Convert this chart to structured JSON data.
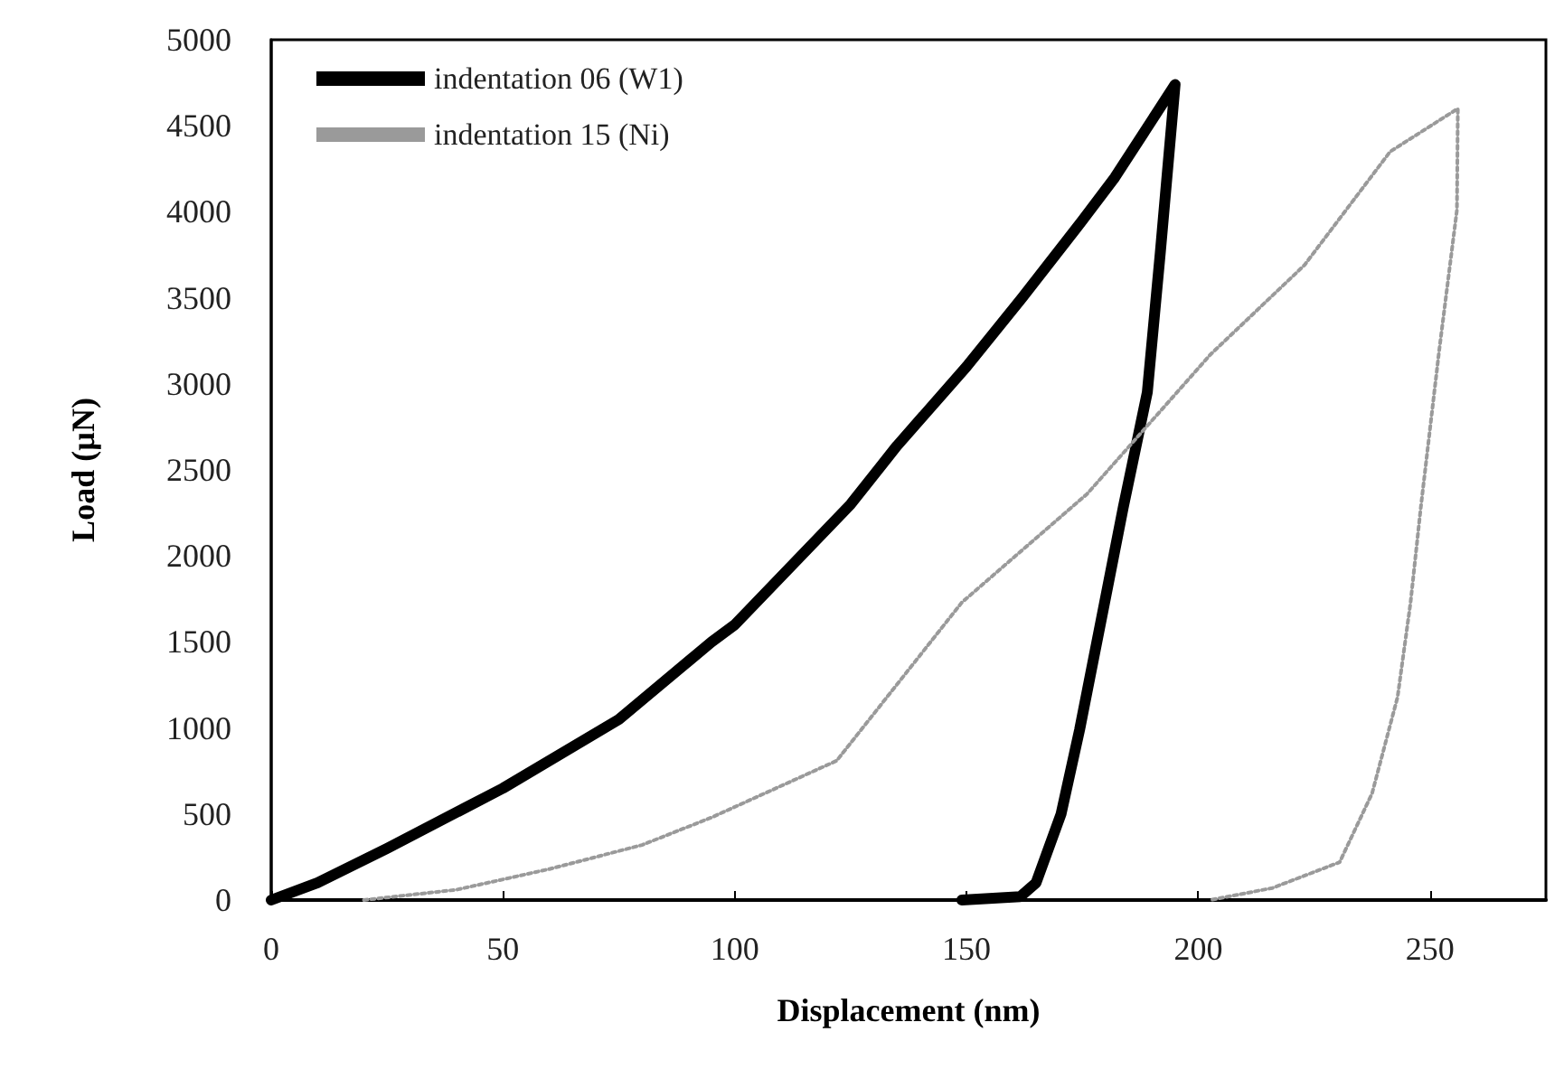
{
  "chart_data": {
    "type": "line",
    "xlabel": "Displacement (nm)",
    "ylabel": "Load (µN)",
    "xlim": [
      0,
      275
    ],
    "xticks": [
      0,
      50,
      100,
      150,
      200,
      250
    ],
    "ylim": [
      0,
      5000
    ],
    "yticks": [
      0,
      500,
      1000,
      1500,
      2000,
      2500,
      3000,
      3500,
      4000,
      4500,
      5000
    ],
    "grid": false,
    "legend": "top left",
    "marker": "none",
    "series": [
      {
        "name": "indentation 06 (W1)",
        "color": "#000000",
        "line_style": "solid",
        "x": [
          0,
          10,
          25,
          50,
          75,
          95,
          100,
          125,
          135,
          150,
          162,
          175,
          182,
          195,
          191.8,
          189,
          183.8,
          179.8,
          174.4,
          170.4,
          165,
          161.6,
          149
        ],
        "values": [
          0,
          100,
          300,
          650,
          1050,
          1500,
          1600,
          2300,
          2640,
          3100,
          3500,
          3950,
          4200,
          4740,
          3760,
          2950,
          2280,
          1730,
          990,
          500,
          100,
          20,
          0
        ]
      },
      {
        "name": "indentation 15 (Ni)",
        "color": "#9a9a9a",
        "line_style": "dotted",
        "x": [
          20,
          40,
          60,
          80,
          95,
          122,
          149,
          176,
          202.6,
          222.9,
          241.4,
          256,
          255.8,
          252,
          248,
          245.8,
          243,
          237.5,
          230.5,
          216,
          202.6
        ],
        "values": [
          0,
          60,
          180,
          320,
          480,
          810,
          1730,
          2360,
          3170,
          3690,
          4350,
          4600,
          4010,
          3200,
          2280,
          1730,
          1180,
          620,
          220,
          70,
          0
        ]
      }
    ]
  }
}
